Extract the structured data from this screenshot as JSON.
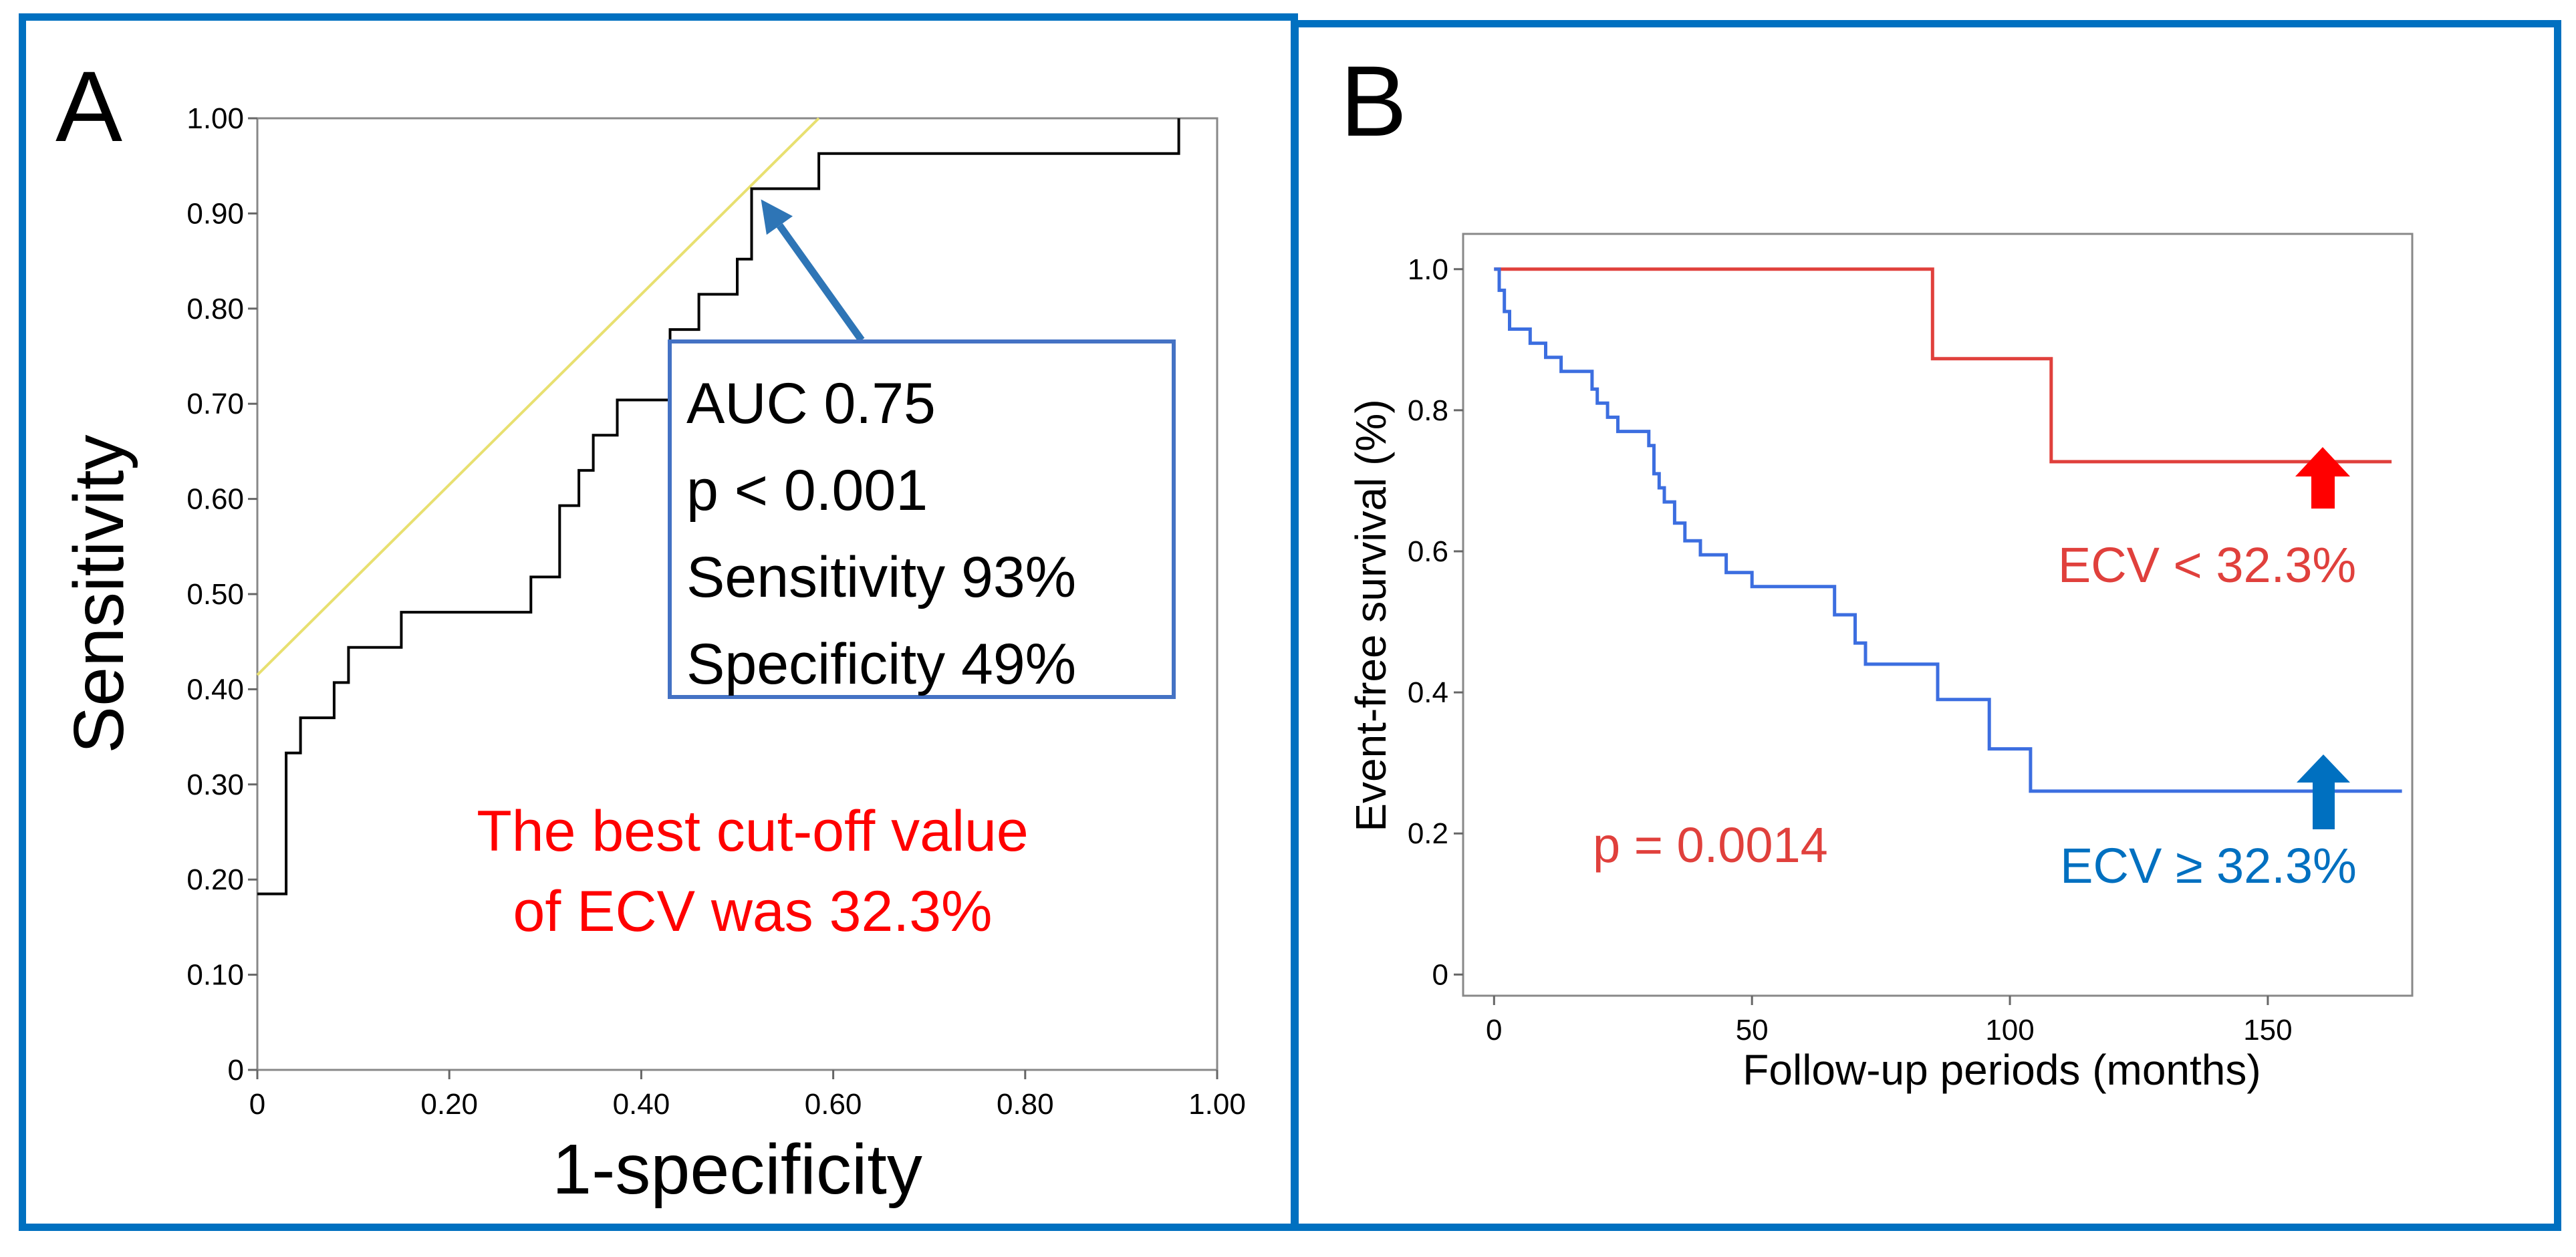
{
  "chart_data": [
    {
      "type": "line",
      "panel_label": "A",
      "title": "",
      "xlabel": "1-specificity",
      "ylabel": "Sensitivity",
      "xlim": [
        0,
        1
      ],
      "ylim": [
        0,
        1
      ],
      "x_ticks": [
        "0",
        "0.20",
        "0.40",
        "0.60",
        "0.80",
        "1.00"
      ],
      "x_tick_values": [
        0,
        0.2,
        0.4,
        0.6,
        0.8,
        1.0
      ],
      "y_ticks": [
        "0",
        "0.10",
        "0.20",
        "0.30",
        "0.40",
        "0.50",
        "0.60",
        "0.70",
        "0.80",
        "0.90",
        "1.00"
      ],
      "y_tick_values": [
        0,
        0.1,
        0.2,
        0.3,
        0.4,
        0.5,
        0.6,
        0.7,
        0.8,
        0.9,
        1.0
      ],
      "series": [
        {
          "name": "ROC curve",
          "color": "#000000",
          "x": [
            0,
            0.03,
            0.03,
            0.045,
            0.045,
            0.08,
            0.08,
            0.095,
            0.095,
            0.15,
            0.15,
            0.285,
            0.285,
            0.315,
            0.315,
            0.335,
            0.335,
            0.35,
            0.35,
            0.375,
            0.375,
            0.43,
            0.43,
            0.46,
            0.46,
            0.5,
            0.5,
            0.515,
            0.515,
            0.585,
            0.585,
            0.96,
            0.96
          ],
          "y": [
            0.185,
            0.185,
            0.333,
            0.333,
            0.37,
            0.37,
            0.407,
            0.407,
            0.444,
            0.444,
            0.481,
            0.481,
            0.518,
            0.518,
            0.593,
            0.593,
            0.63,
            0.63,
            0.667,
            0.667,
            0.704,
            0.704,
            0.778,
            0.778,
            0.815,
            0.815,
            0.852,
            0.852,
            0.926,
            0.926,
            0.963,
            0.963,
            1.0
          ]
        },
        {
          "name": "Tangent line",
          "color": "#E8E070",
          "x": [
            0,
            0.585
          ],
          "y": [
            0.415,
            1.0
          ]
        }
      ],
      "annotations": {
        "stats_box": [
          "AUC 0.75",
          "p < 0.001",
          "Sensitivity 93%",
          "Specificity 49%"
        ],
        "cutoff_text": [
          "The best cut-off value",
          "of ECV was 32.3%"
        ],
        "arrow_target": [
          0.515,
          0.926
        ]
      }
    },
    {
      "type": "line",
      "panel_label": "B",
      "title": "",
      "xlabel": "Follow-up periods (months)",
      "ylabel": "Event-free survival (%)",
      "xlim": [
        -6,
        178
      ],
      "ylim": [
        -0.03,
        1.05
      ],
      "x_ticks": [
        "0",
        "50",
        "100",
        "150"
      ],
      "x_tick_values": [
        0,
        50,
        100,
        150
      ],
      "y_ticks": [
        "0",
        "0.2",
        "0.4",
        "0.6",
        "0.8",
        "1.0"
      ],
      "y_tick_values": [
        0,
        0.2,
        0.4,
        0.6,
        0.8,
        1.0
      ],
      "series": [
        {
          "name": "ECV < 32.3%",
          "color": "#E0403C",
          "x": [
            0,
            85,
            85,
            108,
            108,
            174
          ],
          "y": [
            1.0,
            1.0,
            0.873,
            0.873,
            0.727,
            0.727
          ]
        },
        {
          "name": "ECV ≥ 32.3%",
          "color": "#3C6EE0",
          "x": [
            0,
            1,
            1,
            2,
            2,
            3,
            3,
            7,
            7,
            10,
            10,
            13,
            13,
            19,
            19,
            20,
            20,
            22,
            22,
            24,
            24,
            26,
            26,
            30,
            30,
            31,
            31,
            32,
            32,
            33,
            33,
            35,
            35,
            37,
            37,
            40,
            40,
            45,
            45,
            50,
            50,
            66,
            66,
            70,
            70,
            72,
            72,
            86,
            86,
            96,
            96,
            104,
            104,
            176
          ],
          "y": [
            1.0,
            1.0,
            0.97,
            0.97,
            0.94,
            0.94,
            0.915,
            0.915,
            0.895,
            0.895,
            0.875,
            0.875,
            0.855,
            0.855,
            0.83,
            0.83,
            0.81,
            0.81,
            0.79,
            0.79,
            0.77,
            0.77,
            0.77,
            0.77,
            0.75,
            0.75,
            0.71,
            0.71,
            0.69,
            0.69,
            0.67,
            0.67,
            0.64,
            0.64,
            0.615,
            0.615,
            0.595,
            0.595,
            0.57,
            0.57,
            0.55,
            0.55,
            0.51,
            0.51,
            0.47,
            0.47,
            0.44,
            0.44,
            0.39,
            0.39,
            0.32,
            0.32,
            0.26,
            0.26
          ]
        }
      ],
      "annotations": {
        "p_value": "p = 0.0014",
        "label_low": "ECV < 32.3%",
        "label_high": "ECV ≥ 32.3%"
      }
    }
  ]
}
